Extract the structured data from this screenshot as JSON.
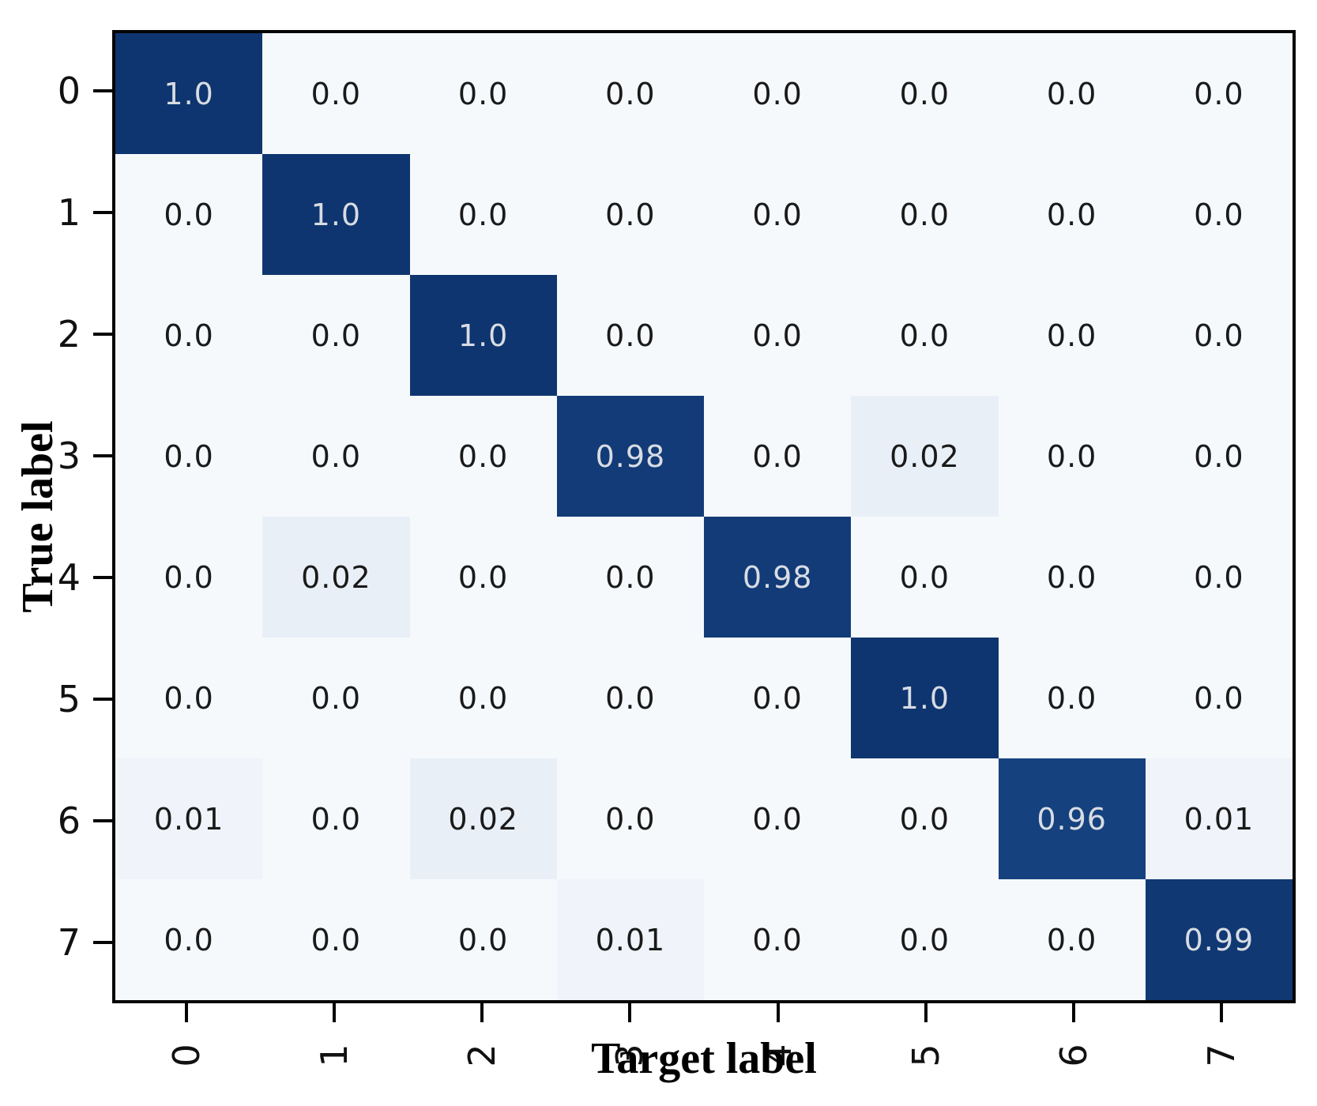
{
  "chart_data": {
    "type": "heatmap",
    "title": "",
    "xlabel": "Target label",
    "ylabel": "True label",
    "x_tick_labels": [
      "0",
      "1",
      "2",
      "3",
      "4",
      "5",
      "6",
      "7"
    ],
    "y_tick_labels": [
      "0",
      "1",
      "2",
      "3",
      "4",
      "5",
      "6",
      "7"
    ],
    "matrix": [
      [
        1.0,
        0.0,
        0.0,
        0.0,
        0.0,
        0.0,
        0.0,
        0.0
      ],
      [
        0.0,
        1.0,
        0.0,
        0.0,
        0.0,
        0.0,
        0.0,
        0.0
      ],
      [
        0.0,
        0.0,
        1.0,
        0.0,
        0.0,
        0.0,
        0.0,
        0.0
      ],
      [
        0.0,
        0.0,
        0.0,
        0.98,
        0.0,
        0.02,
        0.0,
        0.0
      ],
      [
        0.0,
        0.02,
        0.0,
        0.0,
        0.98,
        0.0,
        0.0,
        0.0
      ],
      [
        0.0,
        0.0,
        0.0,
        0.0,
        0.0,
        1.0,
        0.0,
        0.0
      ],
      [
        0.01,
        0.0,
        0.02,
        0.0,
        0.0,
        0.0,
        0.96,
        0.01
      ],
      [
        0.0,
        0.0,
        0.0,
        0.01,
        0.0,
        0.0,
        0.0,
        0.99
      ]
    ],
    "value_range": [
      0,
      1
    ],
    "grid": "off",
    "legend": "none",
    "colors": {
      "cmap_low": "#f6f9fc",
      "cmap_low_tint": "#e9eff7",
      "cmap_high_min": "#15417e",
      "cmap_high_max": "#0e356f",
      "cell_text_on_dark": "#d8dce3",
      "cell_text_on_light": "#1a1a1a",
      "axis_line": "#050505"
    }
  }
}
